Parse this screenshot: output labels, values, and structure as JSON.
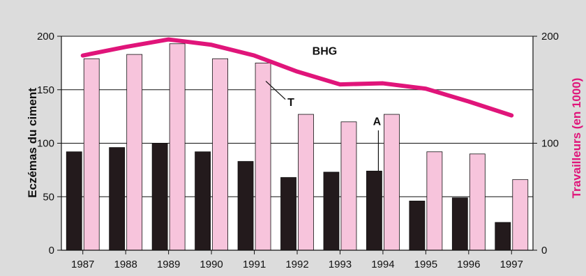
{
  "chart_data": {
    "type": "bar",
    "categories": [
      "1987",
      "1988",
      "1989",
      "1990",
      "1991",
      "1992",
      "1993",
      "1994",
      "1995",
      "1996",
      "1997"
    ],
    "ylabel": "Eczémas du ciment",
    "y2label": "Travailleurs (en 1000)",
    "ylim": [
      0,
      200
    ],
    "y2lim": [
      0,
      200
    ],
    "y_ticks": [
      "0",
      "50",
      "100",
      "150",
      "200"
    ],
    "y2_ticks": [
      "0",
      "100",
      "200"
    ],
    "grid": "horizontal",
    "series": [
      {
        "type": "bar",
        "color": "#231a1c",
        "values": [
          92,
          96,
          100,
          92,
          83,
          68,
          73,
          74,
          46,
          49,
          26
        ]
      },
      {
        "type": "bar",
        "color": "#f7c4dc",
        "values": [
          179,
          183,
          193,
          179,
          175,
          127,
          120,
          127,
          92,
          90,
          66
        ]
      },
      {
        "type": "line",
        "color": "#e0157a",
        "values": [
          182,
          190,
          197,
          192,
          182,
          167,
          155,
          156,
          151,
          139,
          126
        ]
      }
    ],
    "annotations": [
      {
        "text": "BHG",
        "points_to": "line"
      },
      {
        "text": "T",
        "points_to": "1991 pink bar"
      },
      {
        "text": "A",
        "points_to": "1994 dark bar"
      }
    ]
  },
  "colors": {
    "background": "#dcdcdc",
    "plot_area": "#ffffff",
    "line": "#e0157a"
  }
}
